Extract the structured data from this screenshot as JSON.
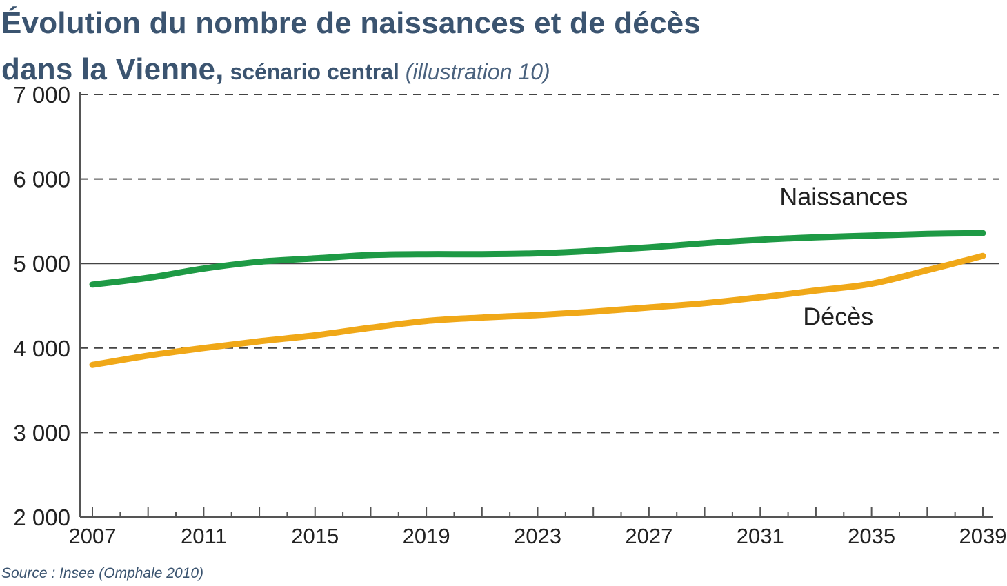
{
  "header": {
    "title_line1": "Évolution du nombre de naissances et de décès",
    "title_line2": "dans la Vienne,",
    "subtitle": "scénario central",
    "illustration": "(illustration 10)"
  },
  "footer": {
    "source": "Source : Insee (Omphale 2010)"
  },
  "colors": {
    "naissances": "#1e9a45",
    "deces": "#f0a818",
    "axis": "#555555",
    "grid": "#444444",
    "text": "#222222"
  },
  "chart_data": {
    "type": "line",
    "title": "Évolution du nombre de naissances et de décès dans la Vienne, scénario central (illustration 10)",
    "xlabel": "",
    "ylabel": "",
    "xlim": [
      2007,
      2039
    ],
    "ylim": [
      2000,
      7000
    ],
    "grid": true,
    "yticks": [
      2000,
      3000,
      4000,
      5000,
      6000,
      7000
    ],
    "ytick_labels": [
      "2 000",
      "3 000",
      "4 000",
      "5 000",
      "6 000",
      "7 000"
    ],
    "xticks": [
      2007,
      2011,
      2015,
      2019,
      2023,
      2027,
      2031,
      2035,
      2039
    ],
    "xtick_labels": [
      "2007",
      "2011",
      "2015",
      "2019",
      "2023",
      "2027",
      "2031",
      "2035",
      "2039"
    ],
    "reference_line": 5000,
    "series": [
      {
        "name": "Naissances",
        "key": "naissances",
        "label": "Naissances",
        "label_anchor": [
          2034,
          5690
        ],
        "x": [
          2007,
          2009,
          2011,
          2013,
          2015,
          2017,
          2019,
          2021,
          2023,
          2025,
          2027,
          2029,
          2031,
          2033,
          2035,
          2037,
          2039
        ],
        "values": [
          4750,
          4830,
          4940,
          5020,
          5060,
          5100,
          5110,
          5110,
          5120,
          5150,
          5190,
          5240,
          5280,
          5310,
          5330,
          5350,
          5360
        ]
      },
      {
        "name": "Décès",
        "key": "deces",
        "label": "Décès",
        "label_anchor": [
          2033.8,
          4270
        ],
        "x": [
          2007,
          2009,
          2011,
          2013,
          2015,
          2017,
          2019,
          2021,
          2023,
          2025,
          2027,
          2029,
          2031,
          2033,
          2035,
          2037,
          2039
        ],
        "values": [
          3800,
          3910,
          4000,
          4080,
          4150,
          4240,
          4320,
          4360,
          4390,
          4430,
          4480,
          4530,
          4600,
          4680,
          4760,
          4920,
          5090
        ]
      }
    ]
  }
}
